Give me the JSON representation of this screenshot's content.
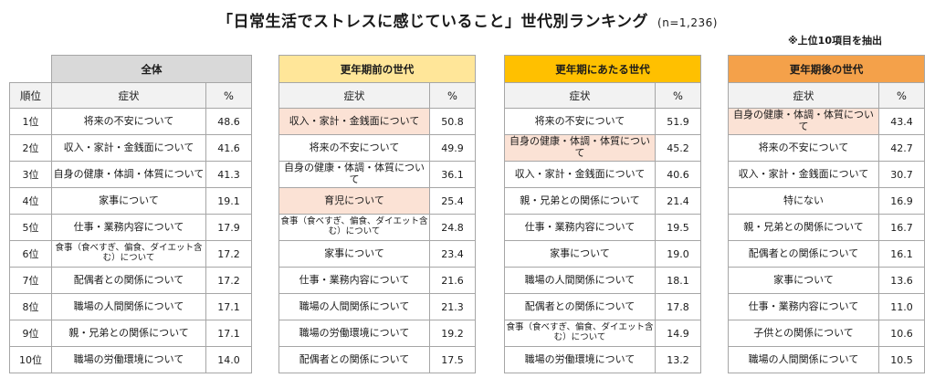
{
  "chart_data": {
    "type": "table",
    "title": "「日常生活でストレスに感じていること」世代別ランキング",
    "sample_size": "(n=1,236)",
    "note": "※上位10項目を抽出",
    "column_headers": {
      "rank": "順位",
      "symptom": "症状",
      "percent": "%"
    },
    "ranks": [
      "1位",
      "2位",
      "3位",
      "4位",
      "5位",
      "6位",
      "7位",
      "8位",
      "9位",
      "10位"
    ],
    "groups": [
      {
        "name": "全体",
        "color": "#d9d9d9",
        "rows": [
          {
            "item": "将来の不安について",
            "value": "48.6",
            "highlight": false
          },
          {
            "item": "収入・家計・金銭面について",
            "value": "41.6",
            "highlight": false
          },
          {
            "item": "自身の健康・体調・体質について",
            "value": "41.3",
            "highlight": false
          },
          {
            "item": "家事について",
            "value": "19.1",
            "highlight": false
          },
          {
            "item": "仕事・業務内容について",
            "value": "17.9",
            "highlight": false
          },
          {
            "item": "食事（食べすぎ、偏食、ダイエット含む）について",
            "value": "17.2",
            "highlight": false
          },
          {
            "item": "配偶者との関係について",
            "value": "17.2",
            "highlight": false
          },
          {
            "item": "職場の人間関係について",
            "value": "17.1",
            "highlight": false
          },
          {
            "item": "親・兄弟との関係について",
            "value": "17.1",
            "highlight": false
          },
          {
            "item": "職場の労働環境について",
            "value": "14.0",
            "highlight": false
          }
        ]
      },
      {
        "name": "更年期前の世代",
        "color": "#ffe699",
        "rows": [
          {
            "item": "収入・家計・金銭面について",
            "value": "50.8",
            "highlight": true
          },
          {
            "item": "将来の不安について",
            "value": "49.9",
            "highlight": false
          },
          {
            "item": "自身の健康・体調・体質について",
            "value": "36.1",
            "highlight": false
          },
          {
            "item": "育児について",
            "value": "25.4",
            "highlight": true
          },
          {
            "item": "食事（食べすぎ、偏食、ダイエット含む）について",
            "value": "24.8",
            "highlight": false
          },
          {
            "item": "家事について",
            "value": "23.4",
            "highlight": false
          },
          {
            "item": "仕事・業務内容について",
            "value": "21.6",
            "highlight": false
          },
          {
            "item": "職場の人間関係について",
            "value": "21.3",
            "highlight": false
          },
          {
            "item": "職場の労働環境について",
            "value": "19.2",
            "highlight": false
          },
          {
            "item": "配偶者との関係について",
            "value": "17.5",
            "highlight": false
          }
        ]
      },
      {
        "name": "更年期にあたる世代",
        "color": "#ffc000",
        "rows": [
          {
            "item": "将来の不安について",
            "value": "51.9",
            "highlight": false
          },
          {
            "item": "自身の健康・体調・体質について",
            "value": "45.2",
            "highlight": true
          },
          {
            "item": "収入・家計・金銭面について",
            "value": "40.6",
            "highlight": false
          },
          {
            "item": "親・兄弟との関係について",
            "value": "21.4",
            "highlight": false
          },
          {
            "item": "仕事・業務内容について",
            "value": "19.5",
            "highlight": false
          },
          {
            "item": "家事について",
            "value": "19.0",
            "highlight": false
          },
          {
            "item": "職場の人間関係について",
            "value": "18.1",
            "highlight": false
          },
          {
            "item": "配偶者との関係について",
            "value": "17.8",
            "highlight": false
          },
          {
            "item": "食事（食べすぎ、偏食、ダイエット含む）について",
            "value": "14.9",
            "highlight": false
          },
          {
            "item": "職場の労働環境について",
            "value": "13.2",
            "highlight": false
          }
        ]
      },
      {
        "name": "更年期後の世代",
        "color": "#f4a14a",
        "rows": [
          {
            "item": "自身の健康・体調・体質について",
            "value": "43.4",
            "highlight": true
          },
          {
            "item": "将来の不安について",
            "value": "42.7",
            "highlight": false
          },
          {
            "item": "収入・家計・金銭面について",
            "value": "30.7",
            "highlight": false
          },
          {
            "item": "特にない",
            "value": "16.9",
            "highlight": false
          },
          {
            "item": "親・兄弟との関係について",
            "value": "16.7",
            "highlight": false
          },
          {
            "item": "配偶者との関係について",
            "value": "16.1",
            "highlight": false
          },
          {
            "item": "家事について",
            "value": "13.6",
            "highlight": false
          },
          {
            "item": "仕事・業務内容について",
            "value": "11.0",
            "highlight": false
          },
          {
            "item": "子供との関係について",
            "value": "10.6",
            "highlight": false
          },
          {
            "item": "職場の人間関係について",
            "value": "10.5",
            "highlight": false
          }
        ]
      }
    ]
  }
}
